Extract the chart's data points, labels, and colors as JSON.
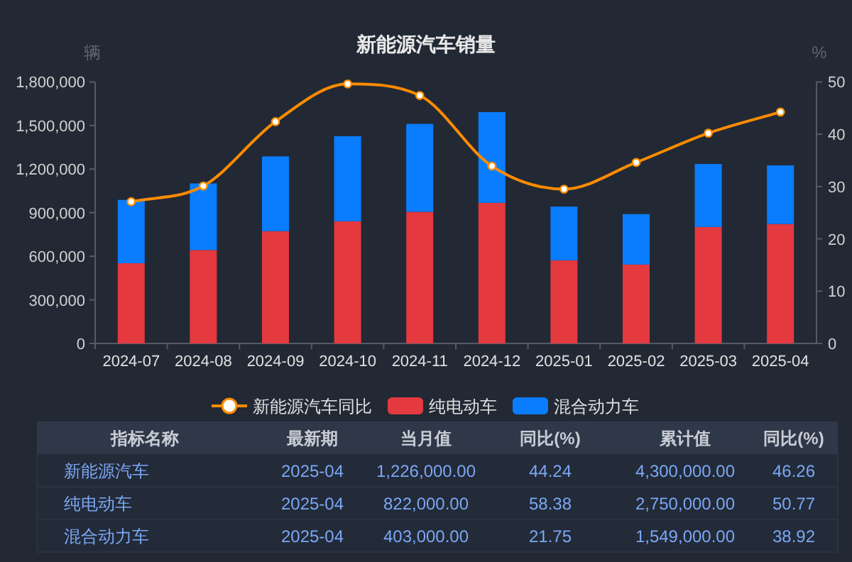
{
  "chart_data": [
    {
      "type": "bar",
      "title": "新能源汽车销量",
      "ylabel": "辆",
      "y2label": "%",
      "categories": [
        "2024-07",
        "2024-08",
        "2024-09",
        "2024-10",
        "2024-11",
        "2024-12",
        "2025-01",
        "2025-02",
        "2025-03",
        "2025-04"
      ],
      "stacked": true,
      "legend": "bottom",
      "marker": "circle",
      "ylim": [
        0,
        1800000
      ],
      "yticks": [
        0,
        {
          "value": 300000,
          "label": "300,000"
        },
        {
          "value": 600000,
          "label": "600,000"
        },
        {
          "value": 900000,
          "label": "900,000"
        },
        {
          "value": 1200000,
          "label": "1,200,000"
        },
        {
          "value": 1500000,
          "label": "1,500,000"
        },
        {
          "value": 1800000,
          "label": "1,800,000"
        }
      ],
      "y2lim": [
        0,
        50
      ],
      "y2ticks": [
        0,
        10,
        20,
        30,
        40,
        50
      ],
      "series": [
        {
          "name": "新能源汽车同比",
          "type": "line",
          "axis": "y2",
          "color": "#ff8c00",
          "values": [
            27.1,
            30.1,
            42.4,
            49.6,
            47.4,
            33.9,
            29.5,
            34.6,
            40.2,
            44.24
          ]
        },
        {
          "name": "纯电动车",
          "color": "#e4393f",
          "values": [
            552000,
            643000,
            773000,
            841000,
            906000,
            968000,
            572000,
            543000,
            802000,
            822000
          ]
        },
        {
          "name": "混合动力车",
          "color": "#0a7dff",
          "values": [
            436000,
            458000,
            514000,
            585000,
            605000,
            624000,
            370000,
            347000,
            433000,
            403000
          ]
        }
      ]
    },
    {
      "type": "other",
      "annotations": [
        "指标名称",
        "最新期",
        "当月值",
        "同比(%)",
        "累计值",
        "同比(%)",
        "新能源汽车",
        "2025-04",
        "1,226,000.00",
        "44.24",
        "4,300,000.00",
        "46.26",
        "纯电动车",
        "2025-04",
        "822,000.00",
        "58.38",
        "2,750,000.00",
        "50.77",
        "混合动力车",
        "2025-04",
        "403,000.00",
        "21.75",
        "1,549,000.00",
        "38.92"
      ]
    }
  ]
}
